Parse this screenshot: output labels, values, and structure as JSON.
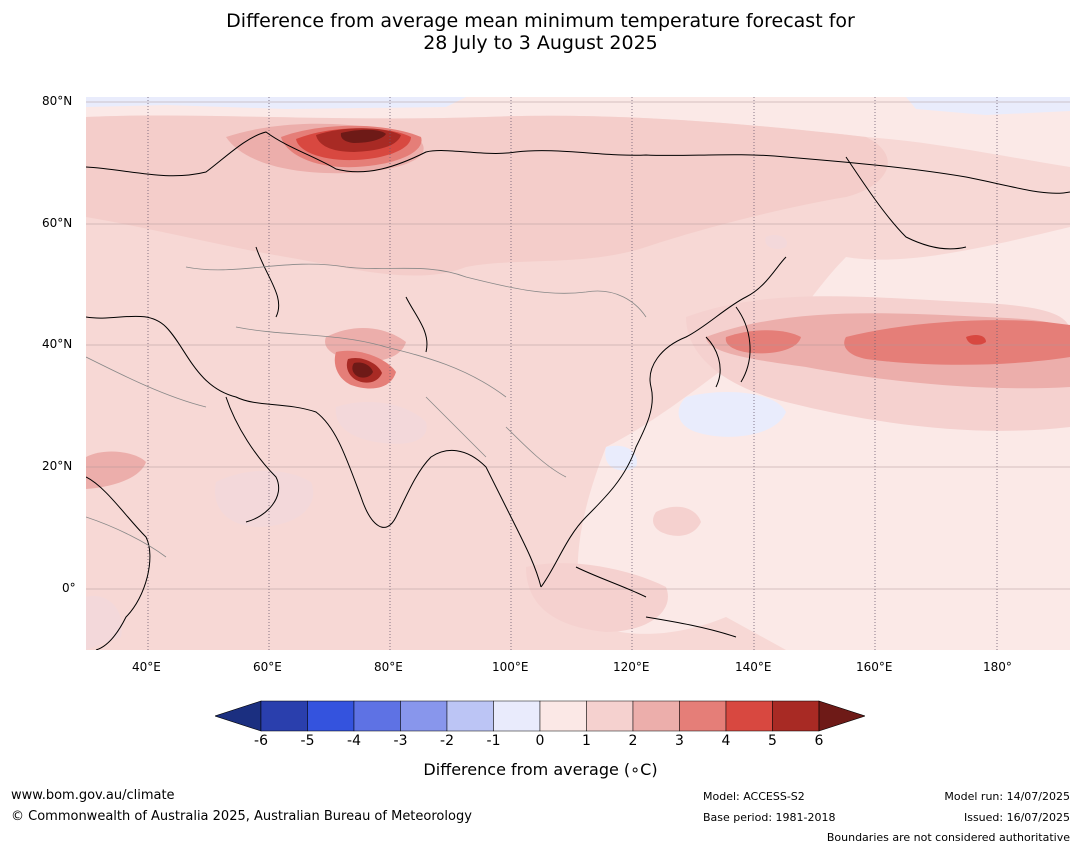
{
  "title": {
    "line1": "Difference from average mean minimum temperature forecast for",
    "line2": "28 July to 3 August 2025"
  },
  "map": {
    "lat_labels": [
      "80°N",
      "60°N",
      "40°N",
      "20°N",
      "0°"
    ],
    "lon_labels": [
      "40°E",
      "60°E",
      "80°E",
      "100°E",
      "120°E",
      "140°E",
      "160°E",
      "180°"
    ],
    "colors": {
      "ocean_base": "#fbe9e7",
      "land_base": "#f5d1cf",
      "neutral": "#e9ecfc"
    }
  },
  "colorbar": {
    "ticks": [
      "-6",
      "-5",
      "-4",
      "-3",
      "-2",
      "-1",
      "0",
      "1",
      "2",
      "3",
      "4",
      "5",
      "6"
    ],
    "colors": [
      "#1b2f80",
      "#2a3fad",
      "#3453de",
      "#5e72e4",
      "#8896ec",
      "#bcc5f5",
      "#e9ebfc",
      "#fbe8e6",
      "#f5d1cf",
      "#ecaeab",
      "#e57e78",
      "#d84840",
      "#a82a24",
      "#6e1a17"
    ],
    "label": "Difference from average (∘C)"
  },
  "footer": {
    "url": "www.bom.gov.au/climate",
    "copyright": "© Commonwealth of Australia 2025, Australian Bureau of Meteorology",
    "model": "Model: ACCESS-S2",
    "base_period": "Base period: 1981-2018",
    "model_run": "Model run: 14/07/2025",
    "issued": "Issued: 16/07/2025",
    "boundaries": "Boundaries are not considered authoritative"
  }
}
